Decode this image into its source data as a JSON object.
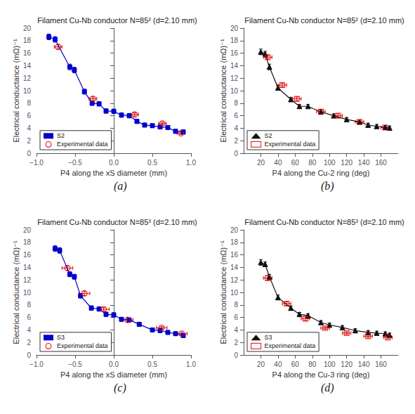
{
  "chart_data": [
    {
      "type": "line",
      "title": "Filament Cu-Nb conductor N=85² (d=2.10 mm)",
      "xlabel": "P4 along the xS diameter (mm)",
      "ylabel": "Electrical conductance (mΩ)⁻¹",
      "annotations": [
        "(a)"
      ],
      "xlim": [
        -1,
        1
      ],
      "ylim": [
        0,
        20
      ],
      "xticks": [
        {
          "value": -1,
          "label": "−1.0"
        },
        {
          "value": -0.5,
          "label": "−0.5"
        },
        {
          "value": 0,
          "label": "0.0"
        },
        {
          "value": 0.5,
          "label": "0.5"
        },
        {
          "value": 1,
          "label": "1.0"
        }
      ],
      "yticks": [
        0,
        2,
        4,
        6,
        8,
        10,
        12,
        14,
        16,
        18,
        20
      ],
      "grid": false,
      "legend": "lower left",
      "series": [
        {
          "name": "S2",
          "type": "line",
          "color": "#0000cc",
          "marker": "square",
          "line_style": "solid",
          "x": [
            -0.84,
            -0.76,
            -0.57,
            -0.51,
            -0.38,
            -0.28,
            -0.19,
            -0.1,
            0.0,
            0.1,
            0.2,
            0.3,
            0.4,
            0.5,
            0.6,
            0.7,
            0.8,
            0.9
          ],
          "values": [
            18.6,
            18.2,
            13.8,
            13.3,
            9.85,
            8.0,
            7.9,
            6.75,
            6.7,
            6.1,
            6.0,
            5.1,
            4.5,
            4.4,
            4.2,
            4.1,
            3.5,
            3.4
          ],
          "yerr": [
            0.45,
            0.45,
            0.45,
            0.45,
            0.4,
            0.35,
            0.35,
            0.35,
            0.35,
            0.35,
            0.35,
            0.35,
            0.3,
            0.3,
            0.3,
            0.3,
            0.3,
            0.3
          ],
          "xerr": [
            0.015,
            0.015,
            0.015,
            0.015,
            0.015,
            0.015,
            0.015,
            0.015,
            0.015,
            0.015,
            0.015,
            0.015,
            0.015,
            0.015,
            0.015,
            0.015,
            0.015,
            0.015
          ]
        },
        {
          "name": "Experimental data",
          "type": "scatter",
          "color": "#dd0000",
          "marker": "circle",
          "line_style": "none",
          "x": [
            -0.72,
            -0.27,
            0.27,
            0.63,
            0.87
          ],
          "values": [
            17.0,
            8.7,
            6.2,
            4.75,
            3.2
          ],
          "yerr": [
            0.35,
            0.3,
            0.25,
            0.2,
            0.2
          ],
          "xerr": [
            0.05,
            0.05,
            0.05,
            0.05,
            0.05
          ]
        }
      ]
    },
    {
      "type": "line",
      "title": "Filament Cu-Nb conductor N=85² (d=2.10 mm)",
      "xlabel": "P4 along the Cu-2 ring (deg)",
      "ylabel": "Electrical conductance (mΩ)⁻¹",
      "annotations": [
        "(b)"
      ],
      "xlim": [
        0,
        180
      ],
      "ylim": [
        0,
        20
      ],
      "xticks": [
        20,
        40,
        60,
        80,
        100,
        120,
        140,
        160
      ],
      "yticks": [
        0,
        2,
        4,
        6,
        8,
        10,
        12,
        14,
        16,
        18,
        20
      ],
      "grid": false,
      "legend": "lower left",
      "series": [
        {
          "name": "S2",
          "type": "line",
          "color": "#111111",
          "marker": "triangle",
          "line_style": "solid",
          "x": [
            20,
            25,
            30,
            40,
            55,
            65,
            75,
            90,
            105,
            120,
            135,
            145,
            155,
            165,
            170
          ],
          "values": [
            16.2,
            15.9,
            13.8,
            10.45,
            8.6,
            7.5,
            7.5,
            6.6,
            6.0,
            5.4,
            5.0,
            4.5,
            4.3,
            4.15,
            4.05
          ],
          "yerr": [
            0.45,
            0.4,
            0.45,
            0.4,
            0.35,
            0.3,
            0.3,
            0.3,
            0.3,
            0.3,
            0.3,
            0.3,
            0.3,
            0.3,
            0.3
          ],
          "xerr": [
            0.5,
            0.5,
            0.5,
            0.5,
            0.5,
            0.5,
            0.5,
            0.5,
            0.5,
            0.5,
            0.5,
            0.5,
            0.5,
            0.5,
            0.5
          ]
        },
        {
          "name": "Experimental data",
          "type": "scatter",
          "color": "#dd0000",
          "marker": "square",
          "line_style": "none",
          "x": [
            28,
            45,
            62,
            90,
            110,
            135,
            165
          ],
          "values": [
            15.35,
            10.9,
            8.7,
            6.65,
            6.0,
            5.0,
            4.1
          ],
          "yerr": [
            0.3,
            0.3,
            0.3,
            0.3,
            0.3,
            0.3,
            0.3
          ],
          "xerr": [
            5,
            5,
            5,
            5,
            5,
            5,
            5
          ]
        }
      ]
    },
    {
      "type": "line",
      "title": "Filament Cu-Nb conductor N=85³ (d=2.10 mm)",
      "xlabel": "P4 along the xS diameter (mm)",
      "ylabel": "Electrical conductance (mΩ)⁻¹",
      "annotations": [
        "(c)"
      ],
      "xlim": [
        -1,
        1
      ],
      "ylim": [
        0,
        20
      ],
      "xticks": [
        {
          "value": -1,
          "label": "−1.0"
        },
        {
          "value": -0.5,
          "label": "−0.5"
        },
        {
          "value": 0,
          "label": "0.0"
        },
        {
          "value": 0.5,
          "label": "0.5"
        },
        {
          "value": 1,
          "label": "1.0"
        }
      ],
      "yticks": [
        0,
        2,
        4,
        6,
        8,
        10,
        12,
        14,
        16,
        18,
        20
      ],
      "grid": false,
      "legend": "lower left",
      "series": [
        {
          "name": "S3",
          "type": "line",
          "color": "#0000cc",
          "marker": "square",
          "line_style": "solid",
          "x": [
            -0.76,
            -0.7,
            -0.57,
            -0.51,
            -0.43,
            -0.29,
            -0.19,
            -0.1,
            0.0,
            0.1,
            0.2,
            0.33,
            0.5,
            0.6,
            0.7,
            0.8,
            0.9
          ],
          "values": [
            17.0,
            16.7,
            12.9,
            12.5,
            9.45,
            7.5,
            7.35,
            6.5,
            6.4,
            5.7,
            5.6,
            4.9,
            4.0,
            3.9,
            3.6,
            3.4,
            3.1
          ],
          "yerr": [
            0.45,
            0.45,
            0.4,
            0.4,
            0.35,
            0.35,
            0.35,
            0.35,
            0.35,
            0.3,
            0.3,
            0.3,
            0.3,
            0.3,
            0.3,
            0.3,
            0.3
          ],
          "xerr": [
            0.015,
            0.015,
            0.015,
            0.015,
            0.015,
            0.015,
            0.015,
            0.015,
            0.015,
            0.015,
            0.015,
            0.015,
            0.015,
            0.015,
            0.015,
            0.015,
            0.015
          ]
        },
        {
          "name": "Experimental data",
          "type": "scatter",
          "color": "#dd0000",
          "marker": "circle",
          "line_style": "none",
          "x": [
            -0.6,
            -0.38,
            -0.13,
            0.18,
            0.62,
            0.88
          ],
          "values": [
            13.9,
            9.85,
            7.3,
            5.6,
            4.35,
            3.4
          ],
          "yerr": [
            0.35,
            0.35,
            0.3,
            0.3,
            0.2,
            0.2
          ],
          "xerr": [
            0.07,
            0.07,
            0.07,
            0.07,
            0.07,
            0.07
          ]
        }
      ]
    },
    {
      "type": "line",
      "title": "Filament Cu-Nb conductor N=85³ (d=2.10 mm)",
      "xlabel": "P4 along the Cu-3 ring (deg)",
      "ylabel": "Electrical conductance (mΩ)⁻¹",
      "annotations": [
        "(d)"
      ],
      "xlim": [
        0,
        180
      ],
      "ylim": [
        0,
        20
      ],
      "xticks": [
        20,
        40,
        60,
        80,
        100,
        120,
        140,
        160
      ],
      "yticks": [
        0,
        2,
        4,
        6,
        8,
        10,
        12,
        14,
        16,
        18,
        20
      ],
      "grid": false,
      "legend": "lower left",
      "series": [
        {
          "name": "S3",
          "type": "line",
          "color": "#111111",
          "marker": "triangle",
          "line_style": "solid",
          "x": [
            20,
            25,
            30,
            40,
            55,
            65,
            75,
            90,
            100,
            115,
            130,
            145,
            155,
            165,
            170
          ],
          "values": [
            14.8,
            14.5,
            12.5,
            9.2,
            7.5,
            6.5,
            6.3,
            5.2,
            4.8,
            4.4,
            3.9,
            3.6,
            3.5,
            3.4,
            3.2
          ],
          "yerr": [
            0.45,
            0.4,
            0.4,
            0.4,
            0.35,
            0.3,
            0.3,
            0.3,
            0.3,
            0.3,
            0.3,
            0.3,
            0.3,
            0.3,
            0.3
          ],
          "xerr": [
            0.5,
            0.5,
            0.5,
            0.5,
            0.5,
            0.5,
            0.5,
            0.5,
            0.5,
            0.5,
            0.5,
            0.5,
            0.5,
            0.5,
            0.5
          ]
        },
        {
          "name": "Experimental data",
          "type": "scatter",
          "color": "#dd0000",
          "marker": "square",
          "line_style": "none",
          "x": [
            28,
            50,
            72,
            95,
            120,
            145,
            168
          ],
          "values": [
            12.3,
            8.2,
            5.8,
            4.3,
            3.5,
            3.0,
            2.8
          ],
          "yerr": [
            0.4,
            0.3,
            0.3,
            0.2,
            0.2,
            0.2,
            0.2
          ],
          "xerr": [
            5,
            5,
            5,
            5,
            5,
            5,
            5
          ]
        }
      ]
    }
  ]
}
